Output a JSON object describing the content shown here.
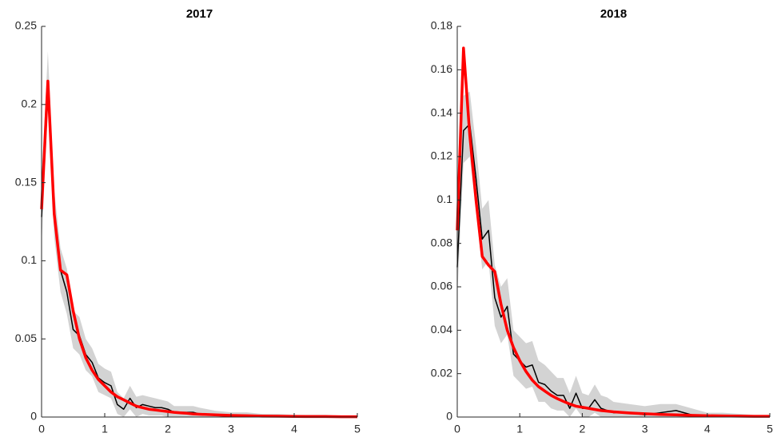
{
  "chart_data": [
    {
      "type": "line",
      "title": "2017",
      "x": [
        0,
        0.1,
        0.2,
        0.3,
        0.4,
        0.5,
        0.6,
        0.7,
        0.8,
        0.9,
        1.0,
        1.1,
        1.2,
        1.3,
        1.4,
        1.5,
        1.6,
        1.7,
        1.8,
        1.9,
        2.0,
        2.1,
        2.2,
        2.3,
        2.4,
        2.5,
        2.75,
        3,
        3.25,
        3.5,
        3.75,
        4,
        4.25,
        4.5,
        4.75,
        5
      ],
      "band": {
        "color": "#d3d3d3",
        "lower": [
          0.11,
          0.198,
          0.115,
          0.08,
          0.066,
          0.044,
          0.04,
          0.03,
          0.026,
          0.016,
          0.014,
          0.012,
          0.002,
          0,
          0.005,
          0,
          0.002,
          0.001,
          0.001,
          0.001,
          0,
          0,
          0,
          0,
          0,
          0,
          0,
          0,
          0,
          0,
          0,
          0,
          0,
          0,
          0,
          0
        ],
        "upper": [
          0.15,
          0.234,
          0.145,
          0.108,
          0.095,
          0.068,
          0.064,
          0.05,
          0.044,
          0.034,
          0.031,
          0.029,
          0.016,
          0.012,
          0.02,
          0.013,
          0.014,
          0.013,
          0.012,
          0.011,
          0.01,
          0.007,
          0.007,
          0.007,
          0.007,
          0.006,
          0.004,
          0.003,
          0.003,
          0.002,
          0.002,
          0.0015,
          0.0015,
          0.0015,
          0.001,
          0.001
        ]
      },
      "series": [
        {
          "color": "#000000",
          "width": 1.5,
          "values": [
            0.128,
            0.215,
            0.13,
            0.094,
            0.08,
            0.056,
            0.052,
            0.04,
            0.035,
            0.025,
            0.022,
            0.02,
            0.008,
            0.005,
            0.012,
            0.006,
            0.008,
            0.007,
            0.006,
            0.006,
            0.005,
            0.003,
            0.003,
            0.003,
            0.003,
            0.002,
            0.001,
            0.0005,
            0.001,
            0.0005,
            0.0005,
            0.0003,
            0.0003,
            0.0002,
            0.0002,
            0.0001
          ]
        },
        {
          "color": "#ff0000",
          "width": 3.5,
          "values": [
            0.133,
            0.215,
            0.13,
            0.094,
            0.091,
            0.068,
            0.05,
            0.038,
            0.03,
            0.024,
            0.02,
            0.016,
            0.013,
            0.011,
            0.009,
            0.007,
            0.006,
            0.005,
            0.0045,
            0.004,
            0.0035,
            0.003,
            0.0027,
            0.0024,
            0.002,
            0.0018,
            0.0014,
            0.001,
            0.0008,
            0.0006,
            0.0005,
            0.0004,
            0.0003,
            0.0003,
            0.0002,
            0.0002
          ]
        }
      ],
      "xlim": [
        0,
        5
      ],
      "xticks": [
        0,
        1,
        2,
        3,
        4,
        5
      ],
      "ylim": [
        0,
        0.25
      ],
      "yticks": [
        0,
        0.05,
        0.1,
        0.15,
        0.2,
        0.25
      ],
      "grid": false
    },
    {
      "type": "line",
      "title": "2018",
      "x": [
        0,
        0.1,
        0.2,
        0.3,
        0.4,
        0.5,
        0.6,
        0.7,
        0.8,
        0.9,
        1.0,
        1.1,
        1.2,
        1.3,
        1.4,
        1.5,
        1.6,
        1.7,
        1.8,
        1.9,
        2.0,
        2.1,
        2.2,
        2.3,
        2.4,
        2.5,
        2.75,
        3,
        3.25,
        3.5,
        3.75,
        4,
        4.25,
        4.5,
        4.75,
        5
      ],
      "band": {
        "color": "#d3d3d3",
        "lower": [
          0.055,
          0.117,
          0.12,
          0.095,
          0.068,
          0.072,
          0.042,
          0.034,
          0.038,
          0.019,
          0.016,
          0.013,
          0.014,
          0.007,
          0.007,
          0.004,
          0.003,
          0.003,
          0,
          0.004,
          0,
          0,
          0.002,
          0,
          0,
          0,
          0,
          0,
          0,
          0,
          0,
          0,
          0,
          0,
          0,
          0
        ],
        "upper": [
          0.085,
          0.148,
          0.15,
          0.125,
          0.096,
          0.1,
          0.07,
          0.06,
          0.064,
          0.04,
          0.037,
          0.034,
          0.035,
          0.026,
          0.024,
          0.021,
          0.018,
          0.018,
          0.011,
          0.019,
          0.011,
          0.01,
          0.015,
          0.01,
          0.009,
          0.007,
          0.006,
          0.005,
          0.006,
          0.006,
          0.004,
          0.002,
          0.002,
          0.0015,
          0.001,
          0.001
        ]
      },
      "series": [
        {
          "color": "#000000",
          "width": 1.5,
          "values": [
            0.069,
            0.132,
            0.135,
            0.11,
            0.082,
            0.086,
            0.055,
            0.046,
            0.051,
            0.029,
            0.026,
            0.023,
            0.024,
            0.016,
            0.015,
            0.012,
            0.01,
            0.01,
            0.004,
            0.011,
            0.004,
            0.004,
            0.008,
            0.004,
            0.003,
            0.002,
            0.002,
            0.001,
            0.002,
            0.003,
            0.001,
            0.0005,
            0.0005,
            0.0003,
            0.0002,
            0.0002
          ]
        },
        {
          "color": "#ff0000",
          "width": 3.5,
          "values": [
            0.086,
            0.17,
            0.13,
            0.1,
            0.074,
            0.07,
            0.067,
            0.052,
            0.04,
            0.032,
            0.026,
            0.021,
            0.017,
            0.014,
            0.012,
            0.01,
            0.0085,
            0.0072,
            0.006,
            0.005,
            0.0045,
            0.004,
            0.0035,
            0.003,
            0.0027,
            0.0024,
            0.0019,
            0.0015,
            0.0012,
            0.001,
            0.0008,
            0.0006,
            0.0005,
            0.0004,
            0.0003,
            0.0003
          ]
        }
      ],
      "xlim": [
        0,
        5
      ],
      "xticks": [
        0,
        1,
        2,
        3,
        4,
        5
      ],
      "ylim": [
        0,
        0.18
      ],
      "yticks": [
        0,
        0.02,
        0.04,
        0.06,
        0.08,
        0.1,
        0.12,
        0.14,
        0.16,
        0.18
      ],
      "grid": false
    }
  ]
}
